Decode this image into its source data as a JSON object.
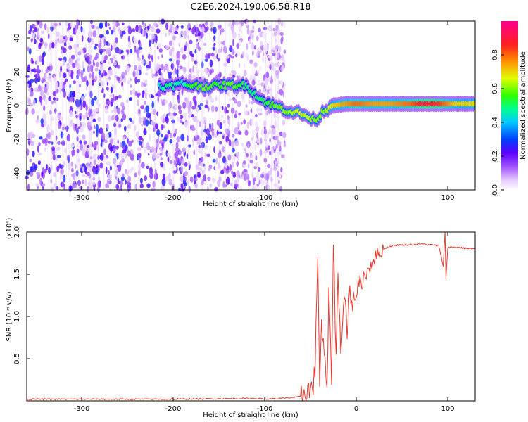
{
  "title": "C2E6.2024.190.06.58.R18",
  "chart_data": [
    {
      "type": "heatmap",
      "xlabel": "Height of straight line (km)",
      "ylabel": "Frequency (Hz)",
      "xlim": [
        -360,
        130
      ],
      "ylim": [
        -50,
        50
      ],
      "xticks": [
        -300,
        -200,
        -100,
        0,
        100
      ],
      "yticks": [
        -40,
        -20,
        0,
        20,
        40
      ],
      "colorbar": {
        "label": "Normalized spectral amplitude",
        "range": [
          0,
          1
        ],
        "ticks": [
          0.0,
          0.2,
          0.4,
          0.6,
          0.8
        ],
        "colors": [
          "#ffffff",
          "#e8c8ff",
          "#8a2be2",
          "#3a00ff",
          "#0050ff",
          "#00d8ff",
          "#00ff80",
          "#40ff00",
          "#ffff00",
          "#ff8000",
          "#ff0040",
          "#ff0090"
        ]
      },
      "noise_region": {
        "x_range": [
          -360,
          -78
        ],
        "freq_range": [
          -50,
          50
        ],
        "level": 0.25
      },
      "signal_track": [
        {
          "x": -215,
          "f": 12,
          "a": 0.45
        },
        {
          "x": -205,
          "f": 11,
          "a": 0.5
        },
        {
          "x": -190,
          "f": 13,
          "a": 0.45
        },
        {
          "x": -180,
          "f": 12,
          "a": 0.55
        },
        {
          "x": -165,
          "f": 11,
          "a": 0.6
        },
        {
          "x": -150,
          "f": 12,
          "a": 0.55
        },
        {
          "x": -135,
          "f": 12,
          "a": 0.6
        },
        {
          "x": -120,
          "f": 12,
          "a": 0.5
        },
        {
          "x": -105,
          "f": 4,
          "a": 0.5
        },
        {
          "x": -95,
          "f": 1,
          "a": 0.55
        },
        {
          "x": -85,
          "f": -1,
          "a": 0.6
        },
        {
          "x": -75,
          "f": -3,
          "a": 0.6
        },
        {
          "x": -65,
          "f": -4,
          "a": 0.65
        },
        {
          "x": -55,
          "f": -6,
          "a": 0.65
        },
        {
          "x": -45,
          "f": -9,
          "a": 0.6
        },
        {
          "x": -35,
          "f": -3,
          "a": 0.6
        },
        {
          "x": -25,
          "f": 0,
          "a": 0.7
        },
        {
          "x": -10,
          "f": 1,
          "a": 0.75
        },
        {
          "x": 0,
          "f": 1,
          "a": 0.8
        },
        {
          "x": 20,
          "f": 1,
          "a": 0.75
        },
        {
          "x": 40,
          "f": 1,
          "a": 0.75
        },
        {
          "x": 60,
          "f": 1,
          "a": 0.8
        },
        {
          "x": 75,
          "f": 1,
          "a": 0.9
        },
        {
          "x": 90,
          "f": 1,
          "a": 0.85
        },
        {
          "x": 110,
          "f": 1,
          "a": 0.7
        },
        {
          "x": 130,
          "f": 1,
          "a": 0.7
        }
      ]
    },
    {
      "type": "line",
      "xlabel": "Height of straight line (km)",
      "ylabel": "SNR (10 * v/v)",
      "yscale_label": "(x10⁴)",
      "xlim": [
        -360,
        130
      ],
      "ylim": [
        0,
        2.0
      ],
      "xticks": [
        -300,
        -200,
        -100,
        0,
        100
      ],
      "yticks": [
        0.5,
        1.0,
        1.5,
        2.0
      ],
      "yticklabels": [
        "0.5",
        "1.0",
        "1.5",
        "2.0"
      ],
      "color": "#e8382e",
      "series": [
        {
          "x": [
            -360,
            -300,
            -200,
            -110,
            -100,
            -80,
            -60,
            -55,
            -50,
            -45,
            -42,
            -40,
            -38,
            -35,
            -32,
            -30,
            -27,
            -25,
            -22,
            -20,
            -17,
            -15,
            -12,
            -10,
            -7,
            -5,
            -3,
            0,
            5,
            10,
            15,
            20,
            25,
            30,
            35,
            40,
            50,
            60,
            70,
            80,
            90,
            95,
            97,
            98,
            100,
            110,
            120,
            130
          ],
          "y": [
            0.02,
            0.02,
            0.02,
            0.03,
            0.02,
            0.03,
            0.05,
            0.15,
            0.1,
            0.3,
            1.8,
            0.2,
            0.9,
            0.5,
            0.15,
            1.2,
            0.3,
            1.9,
            0.5,
            1.5,
            0.6,
            1.0,
            1.3,
            0.7,
            1.4,
            1.1,
            1.2,
            1.3,
            1.4,
            1.5,
            1.6,
            1.7,
            1.75,
            1.8,
            1.82,
            1.84,
            1.85,
            1.85,
            1.86,
            1.85,
            1.84,
            1.6,
            2.0,
            1.45,
            1.82,
            1.82,
            1.81,
            1.8
          ]
        }
      ]
    }
  ]
}
